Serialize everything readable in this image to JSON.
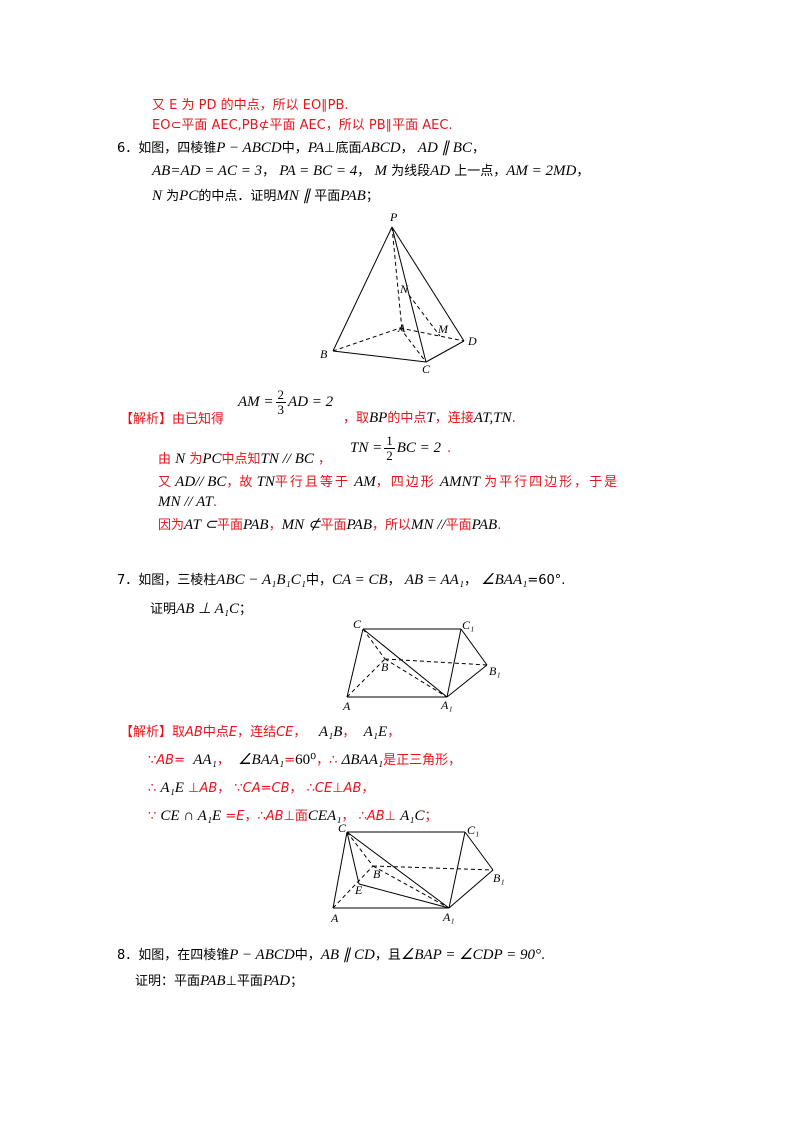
{
  "lines": {
    "l1": "又 E 为 PD 的中点，所以 EO∥PB.",
    "l2": "EO⊂平面 AEC,PB⊄平面 AEC，所以 PB∥平面 AEC.",
    "q6_num": "6．",
    "q6_a": "如图，四棱锥",
    "q6_b": "P − ABCD",
    "q6_c": "中，",
    "q6_d": "PA",
    "q6_e": "⊥底面",
    "q6_f": "ABCD",
    "q6_g": "，",
    "q6_h": "AD ∥ BC",
    "q6_i": "，",
    "q6_2a": "AB=AD = AC = 3",
    "q6_2b": "，",
    "q6_2c": "PA = BC = 4",
    "q6_2d": "，",
    "q6_2e": "M",
    "q6_2f": "为线段",
    "q6_2g": "AD",
    "q6_2h": "上一点，",
    "q6_2i": "AM = 2MD",
    "q6_2j": "，",
    "q6_3a": "N",
    "q6_3b": "为",
    "q6_3c": "PC",
    "q6_3d": "的中点．证明",
    "q6_3e": "MN ∥",
    "q6_3f": "平面",
    "q6_3g": "PAB",
    "q6_3h": "；",
    "s6_tag": "【解析】",
    "s6_1a": "由已知得",
    "s6_1b": "AM =",
    "s6_1c_n": "2",
    "s6_1c_d": "3",
    "s6_1d": "AD = 2",
    "s6_1e": "，取",
    "s6_1f": "BP",
    "s6_1g": "的中点",
    "s6_1h": "T",
    "s6_1i": "，连接",
    "s6_1j": "AT,TN",
    "s6_1k": ".",
    "s6_2a": "由",
    "s6_2b": "N",
    "s6_2c": "为",
    "s6_2d": "PC",
    "s6_2e": "中点知",
    "s6_2f": "TN // BC",
    "s6_2g": "，",
    "s6_2h": "TN =",
    "s6_2i_n": "1",
    "s6_2i_d": "2",
    "s6_2j": "BC = 2",
    "s6_2k": ".",
    "s6_3a": "又",
    "s6_3b": "AD// BC",
    "s6_3c": "，故",
    "s6_3d": "TN",
    "s6_3e": "平行且等于",
    "s6_3f": "AM",
    "s6_3g": "，四边形",
    "s6_3h": "AMNT",
    "s6_3i": "为平行四边形，于是",
    "s6_4a": "MN // AT",
    "s6_4b": ".",
    "s6_5a": "因为",
    "s6_5b": "AT ⊂",
    "s6_5c": "平面",
    "s6_5d": "PAB",
    "s6_5e": "，",
    "s6_5f": "MN ⊄",
    "s6_5g": "平面",
    "s6_5h": "PAB",
    "s6_5i": "，所以",
    "s6_5j": "MN //",
    "s6_5k": "平面",
    "s6_5l": "PAB",
    "s6_5m": ".",
    "q7_num": "7．",
    "q7_a": "如图，三棱柱",
    "q7_b": "ABC − A₁B₁C₁",
    "q7_c": "中，",
    "q7_d": "CA = CB",
    "q7_e": "，",
    "q7_f": "AB = AA₁",
    "q7_g": "，",
    "q7_h": "∠BAA₁",
    "q7_i": "=60°.",
    "q7_2a": "证明",
    "q7_2b": "AB ⊥ A₁C",
    "q7_2c": "；",
    "s7_tag": "【解析】",
    "s7_1a": "取",
    "s7_1b": "AB",
    "s7_1c": "中点",
    "s7_1d": "E",
    "s7_1e": "，连结",
    "s7_1f": "CE",
    "s7_1g": "，",
    "s7_1h": "A₁B",
    "s7_1i": "，",
    "s7_1j": "A₁E",
    "s7_1k": "，",
    "s7_2a": "∵",
    "s7_2b": "AB=",
    "s7_2c": "AA₁",
    "s7_2d": "，",
    "s7_2e": "∠BAA₁",
    "s7_2f": "=",
    "s7_2g": "60⁰",
    "s7_2h": "，∴",
    "s7_2i": "ΔBAA₁",
    "s7_2j": "是正三角形，",
    "s7_3a": "∴",
    "s7_3b": "A₁E",
    "s7_3c": "⊥",
    "s7_3d": "AB",
    "s7_3e": "，  ∵",
    "s7_3f": "CA=CB",
    "s7_3g": "，  ∴",
    "s7_3h": "CE",
    "s7_3i": "⊥",
    "s7_3j": "AB",
    "s7_3k": "，",
    "s7_4a": "∵",
    "s7_4b": "CE ∩ A₁E",
    "s7_4c": "=",
    "s7_4d": "E",
    "s7_4e": "，∴",
    "s7_4f": "AB",
    "s7_4g": "⊥面",
    "s7_4h": "CEA₁",
    "s7_4i": "，    ∴",
    "s7_4j": "AB",
    "s7_4k": "⊥",
    "s7_4l": "A₁C",
    "s7_4m": "；",
    "q8_num": "8．",
    "q8_a": "如图，在四棱锥",
    "q8_b": "P − ABCD",
    "q8_c": "中，",
    "q8_d": "AB ∥ CD",
    "q8_e": "，且",
    "q8_f": "∠BAP = ∠CDP = 90°",
    "q8_g": ".",
    "q8_2a": "证明：平面",
    "q8_2b": "PAB",
    "q8_2c": "⊥平面",
    "q8_2d": "PAD",
    "q8_2e": "；"
  },
  "fig1_labels": {
    "P": "P",
    "N": "N",
    "A": "A",
    "M": "M",
    "D": "D",
    "B": "B",
    "C": "C"
  },
  "fig2_labels": {
    "C": "C",
    "C1": "C₁",
    "B": "B",
    "B1": "B₁",
    "A": "A",
    "A1": "A₁"
  },
  "fig3_labels": {
    "C": "C",
    "C1": "C₁",
    "B": "B",
    "B1": "B₁",
    "E": "E",
    "A": "A",
    "A1": "A₁"
  },
  "colors": {
    "answer": "#e8141b",
    "text": "#000000"
  }
}
